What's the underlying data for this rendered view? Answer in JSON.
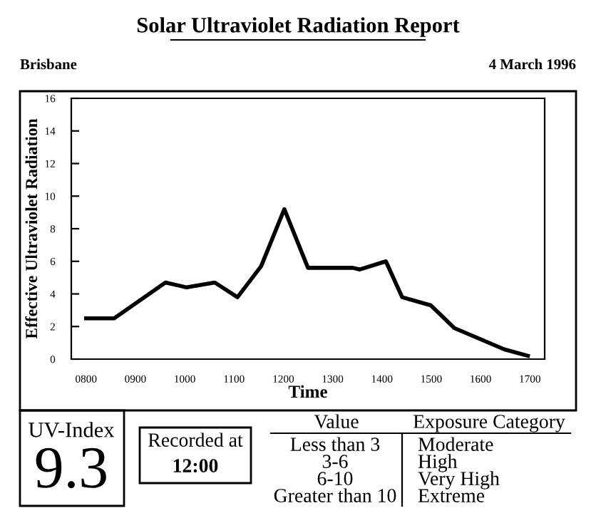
{
  "chart_data": {
    "type": "line",
    "title": "Solar Ultraviolet Radiation Report",
    "xlabel": "Time",
    "ylabel": "Effective Ultraviolet Radiation",
    "x": [
      800,
      857,
      961,
      1004,
      1061,
      1107,
      1155,
      1202,
      1250,
      1341,
      1355,
      1408,
      1441,
      1499,
      1547,
      1648,
      1696
    ],
    "series": [
      {
        "color": "#000000",
        "values": [
          2.5,
          2.5,
          4.7,
          4.4,
          4.7,
          3.8,
          5.7,
          9.2,
          5.6,
          5.6,
          5.5,
          6.0,
          3.8,
          3.3,
          1.9,
          0.6,
          0.2
        ]
      }
    ],
    "xlim": [
      770,
      1730
    ],
    "xticks": [
      {
        "value": 800,
        "label": "0800"
      },
      {
        "value": 900,
        "label": "0900"
      },
      1000,
      1100,
      1200,
      1300,
      1400,
      1500,
      1600,
      1700
    ],
    "ylim": [
      0,
      16
    ],
    "yticks": [
      0,
      2,
      4,
      6,
      8,
      10,
      12,
      14,
      16
    ],
    "grid": false,
    "legend": false,
    "marker": "none",
    "line_style": "solid",
    "annotations": [
      "Brisbane",
      "4 March 1996",
      "UV-Index",
      "9.3",
      "Recorded at",
      "12:00",
      "Value",
      "Exposure Category",
      "Less than 3",
      "3-6",
      "6-10",
      "Greater than 10",
      "Moderate",
      "High",
      "Very High",
      "Extreme"
    ]
  }
}
